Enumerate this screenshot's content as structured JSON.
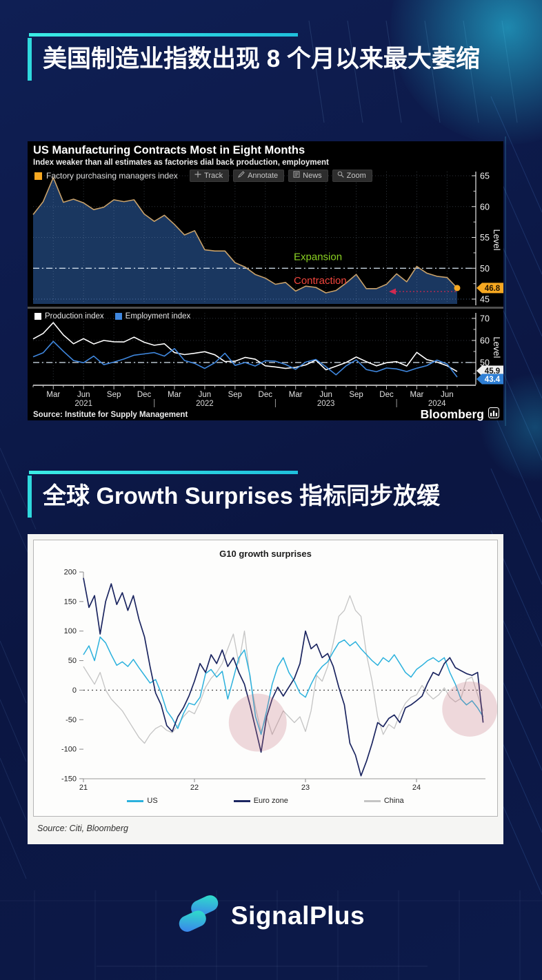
{
  "page": {
    "headline_1": "美国制造业指数出现 8 个月以来最大萎缩",
    "headline_2": "全球 Growth Surprises 指标同步放缓",
    "accent_color": "#2fd9dd",
    "background_color": "#0c1a4a"
  },
  "bloomberg_chart": {
    "title": "US Manufacturing Contracts Most in Eight Months",
    "subtitle": "Index weaker than all estimates as factories dial back production, employment",
    "toolbar": [
      {
        "icon": "track-crosshair-icon",
        "label": "Track"
      },
      {
        "icon": "annotate-pencil-icon",
        "label": "Annotate"
      },
      {
        "icon": "news-page-icon",
        "label": "News"
      },
      {
        "icon": "zoom-magnifier-icon",
        "label": "Zoom"
      }
    ],
    "panel1_legend": "Factory purchasing managers index",
    "panel2_legend": [
      "Production index",
      "Employment index"
    ],
    "source": "Source: Institute for Supply Management",
    "brand": "Bloomberg"
  },
  "g10_chart": {
    "title": "G10 growth surprises",
    "legend": [
      "US",
      "Euro zone",
      "China"
    ],
    "source": "Source: Citi, Bloomberg"
  },
  "footer": {
    "brand": "SignalPlus"
  },
  "chart_data": [
    {
      "type": "area",
      "title": "US Manufacturing Contracts Most in Eight Months",
      "name": "Factory purchasing managers index",
      "x_start": "2021-01",
      "x_interval": "month",
      "ylim": [
        44.3,
        66.7
      ],
      "yticks": [
        45,
        50,
        55,
        60,
        65
      ],
      "y_minor_ticks": [
        47.5,
        52.5,
        57.5,
        62.5
      ],
      "ylabel": "Level",
      "threshold": {
        "value": 50,
        "above_label": "Expansion",
        "below_label": "Contraction"
      },
      "last_value_label": "46.8",
      "colors": {
        "line": "#c9a26b",
        "fill": "#1a3760",
        "marker": "#f6a821",
        "badge_bg": "#f6a821",
        "expansion": "#8ad122",
        "contraction": "#f0453c",
        "annotation": "#d02a50"
      },
      "x_ticks": [
        {
          "i": 2,
          "label": "Mar"
        },
        {
          "i": 5,
          "label": "Jun"
        },
        {
          "i": 8,
          "label": "Sep"
        },
        {
          "i": 11,
          "label": "Dec"
        },
        {
          "i": 14,
          "label": "Mar"
        },
        {
          "i": 17,
          "label": "Jun"
        },
        {
          "i": 20,
          "label": "Sep"
        },
        {
          "i": 23,
          "label": "Dec"
        },
        {
          "i": 26,
          "label": "Mar"
        },
        {
          "i": 29,
          "label": "Jun"
        },
        {
          "i": 32,
          "label": "Sep"
        },
        {
          "i": 35,
          "label": "Dec"
        },
        {
          "i": 38,
          "label": "Mar"
        },
        {
          "i": 41,
          "label": "Jun"
        }
      ],
      "year_labels": [
        {
          "i": 5,
          "label": "2021"
        },
        {
          "i": 17,
          "label": "2022"
        },
        {
          "i": 29,
          "label": "2023"
        },
        {
          "i": 40,
          "label": "2024"
        }
      ],
      "year_dividers": [
        12,
        24,
        36
      ],
      "values": [
        58.7,
        60.8,
        64.7,
        60.7,
        61.2,
        60.6,
        59.5,
        59.9,
        61.1,
        60.8,
        61.1,
        58.8,
        57.6,
        58.6,
        57.1,
        55.4,
        56.1,
        53.0,
        52.8,
        52.8,
        50.9,
        50.2,
        49.0,
        48.4,
        47.4,
        47.7,
        46.3,
        47.1,
        46.9,
        46.0,
        46.4,
        47.6,
        49.0,
        46.7,
        46.7,
        47.4,
        49.1,
        47.8,
        50.3,
        49.2,
        48.7,
        48.5,
        46.8
      ]
    },
    {
      "type": "line",
      "name": "Production and employment indexes",
      "ylim": [
        41.5,
        73
      ],
      "yticks": [
        50,
        60,
        70
      ],
      "y_minor_ticks": [
        45,
        55,
        65
      ],
      "ylabel": "Level",
      "threshold": {
        "value": 50
      },
      "series": [
        {
          "name": "Production index",
          "color": "#ffffff",
          "last_value_label": "45.9",
          "values": [
            60.7,
            63.2,
            68.1,
            62.5,
            58.5,
            60.8,
            58.4,
            60.0,
            59.4,
            59.3,
            61.5,
            59.2,
            57.8,
            58.5,
            54.5,
            53.6,
            54.2,
            54.9,
            53.5,
            50.4,
            50.6,
            52.3,
            51.5,
            48.5,
            48.0,
            47.3,
            47.8,
            48.9,
            51.1,
            46.7,
            48.3,
            50.0,
            52.5,
            50.4,
            48.5,
            49.9,
            50.4,
            48.4,
            54.6,
            51.3,
            50.2,
            48.5,
            45.9
          ]
        },
        {
          "name": "Employment index",
          "color": "#3f87de",
          "last_value_label": "43.4",
          "values": [
            52.6,
            54.4,
            59.6,
            55.1,
            50.9,
            49.9,
            52.9,
            49.0,
            50.2,
            51.6,
            53.3,
            53.9,
            54.5,
            52.9,
            56.3,
            50.9,
            49.6,
            47.3,
            49.9,
            54.2,
            48.7,
            50.0,
            48.4,
            50.8,
            50.6,
            49.1,
            46.9,
            50.2,
            51.4,
            48.1,
            44.4,
            48.5,
            51.2,
            46.8,
            45.8,
            47.5,
            47.1,
            45.9,
            47.4,
            48.6,
            51.1,
            49.3,
            43.4
          ]
        }
      ]
    },
    {
      "type": "line",
      "title": "G10 growth surprises",
      "x_start": 21,
      "x_step": 0.05,
      "xticks": [
        21,
        22,
        23,
        24
      ],
      "ylim": [
        -150,
        200
      ],
      "yticks": [
        200,
        150,
        100,
        50,
        0,
        -50,
        -100,
        -150
      ],
      "zero_line": true,
      "legend_position": "bottom",
      "series": [
        {
          "name": "US",
          "color": "#2bb1dd",
          "values": [
            60,
            75,
            50,
            90,
            80,
            60,
            42,
            48,
            40,
            52,
            38,
            25,
            12,
            18,
            -5,
            -35,
            -48,
            -65,
            -40,
            -22,
            -25,
            -12,
            28,
            35,
            22,
            32,
            -15,
            20,
            55,
            68,
            25,
            -45,
            -75,
            -35,
            10,
            40,
            55,
            30,
            15,
            -5,
            -12,
            10,
            28,
            40,
            48,
            65,
            80,
            85,
            75,
            82,
            70,
            60,
            50,
            42,
            55,
            48,
            60,
            45,
            30,
            22,
            35,
            42,
            50,
            55,
            48,
            55,
            30,
            10,
            -15,
            -25,
            -18,
            -30,
            -45
          ]
        },
        {
          "name": "Euro zone",
          "color": "#1b2560",
          "values": [
            190,
            140,
            160,
            95,
            150,
            180,
            145,
            165,
            135,
            160,
            120,
            90,
            40,
            -5,
            -25,
            -60,
            -70,
            -45,
            -30,
            -10,
            15,
            45,
            30,
            60,
            45,
            68,
            40,
            55,
            30,
            10,
            -25,
            -65,
            -105,
            -45,
            -15,
            5,
            -10,
            5,
            20,
            45,
            100,
            70,
            78,
            55,
            62,
            40,
            5,
            -25,
            -90,
            -110,
            -145,
            -120,
            -90,
            -55,
            -62,
            -48,
            -42,
            -55,
            -30,
            -25,
            -18,
            -10,
            12,
            30,
            25,
            45,
            55,
            38,
            33,
            28,
            25,
            30,
            -55
          ]
        },
        {
          "name": "China",
          "color": "#c4c4c4",
          "values": [
            40,
            25,
            10,
            30,
            0,
            -15,
            -25,
            -35,
            -50,
            -65,
            -80,
            -90,
            -75,
            -65,
            -60,
            -68,
            -72,
            -60,
            -45,
            -35,
            -40,
            -20,
            5,
            20,
            30,
            45,
            70,
            95,
            45,
            100,
            20,
            -30,
            -70,
            -45,
            -75,
            -55,
            -35,
            -45,
            -55,
            -45,
            -70,
            -35,
            25,
            15,
            40,
            80,
            125,
            135,
            160,
            135,
            125,
            60,
            15,
            -45,
            -75,
            -58,
            -65,
            -40,
            -22,
            -12,
            -8,
            8,
            -6,
            -15,
            -8,
            4,
            -12,
            -20,
            -14,
            18,
            22,
            -8,
            -35
          ]
        }
      ],
      "highlights": [
        {
          "x": 22.57,
          "y": -55,
          "r": 42
        },
        {
          "x": 24.48,
          "y": -32,
          "r": 40
        }
      ]
    }
  ]
}
